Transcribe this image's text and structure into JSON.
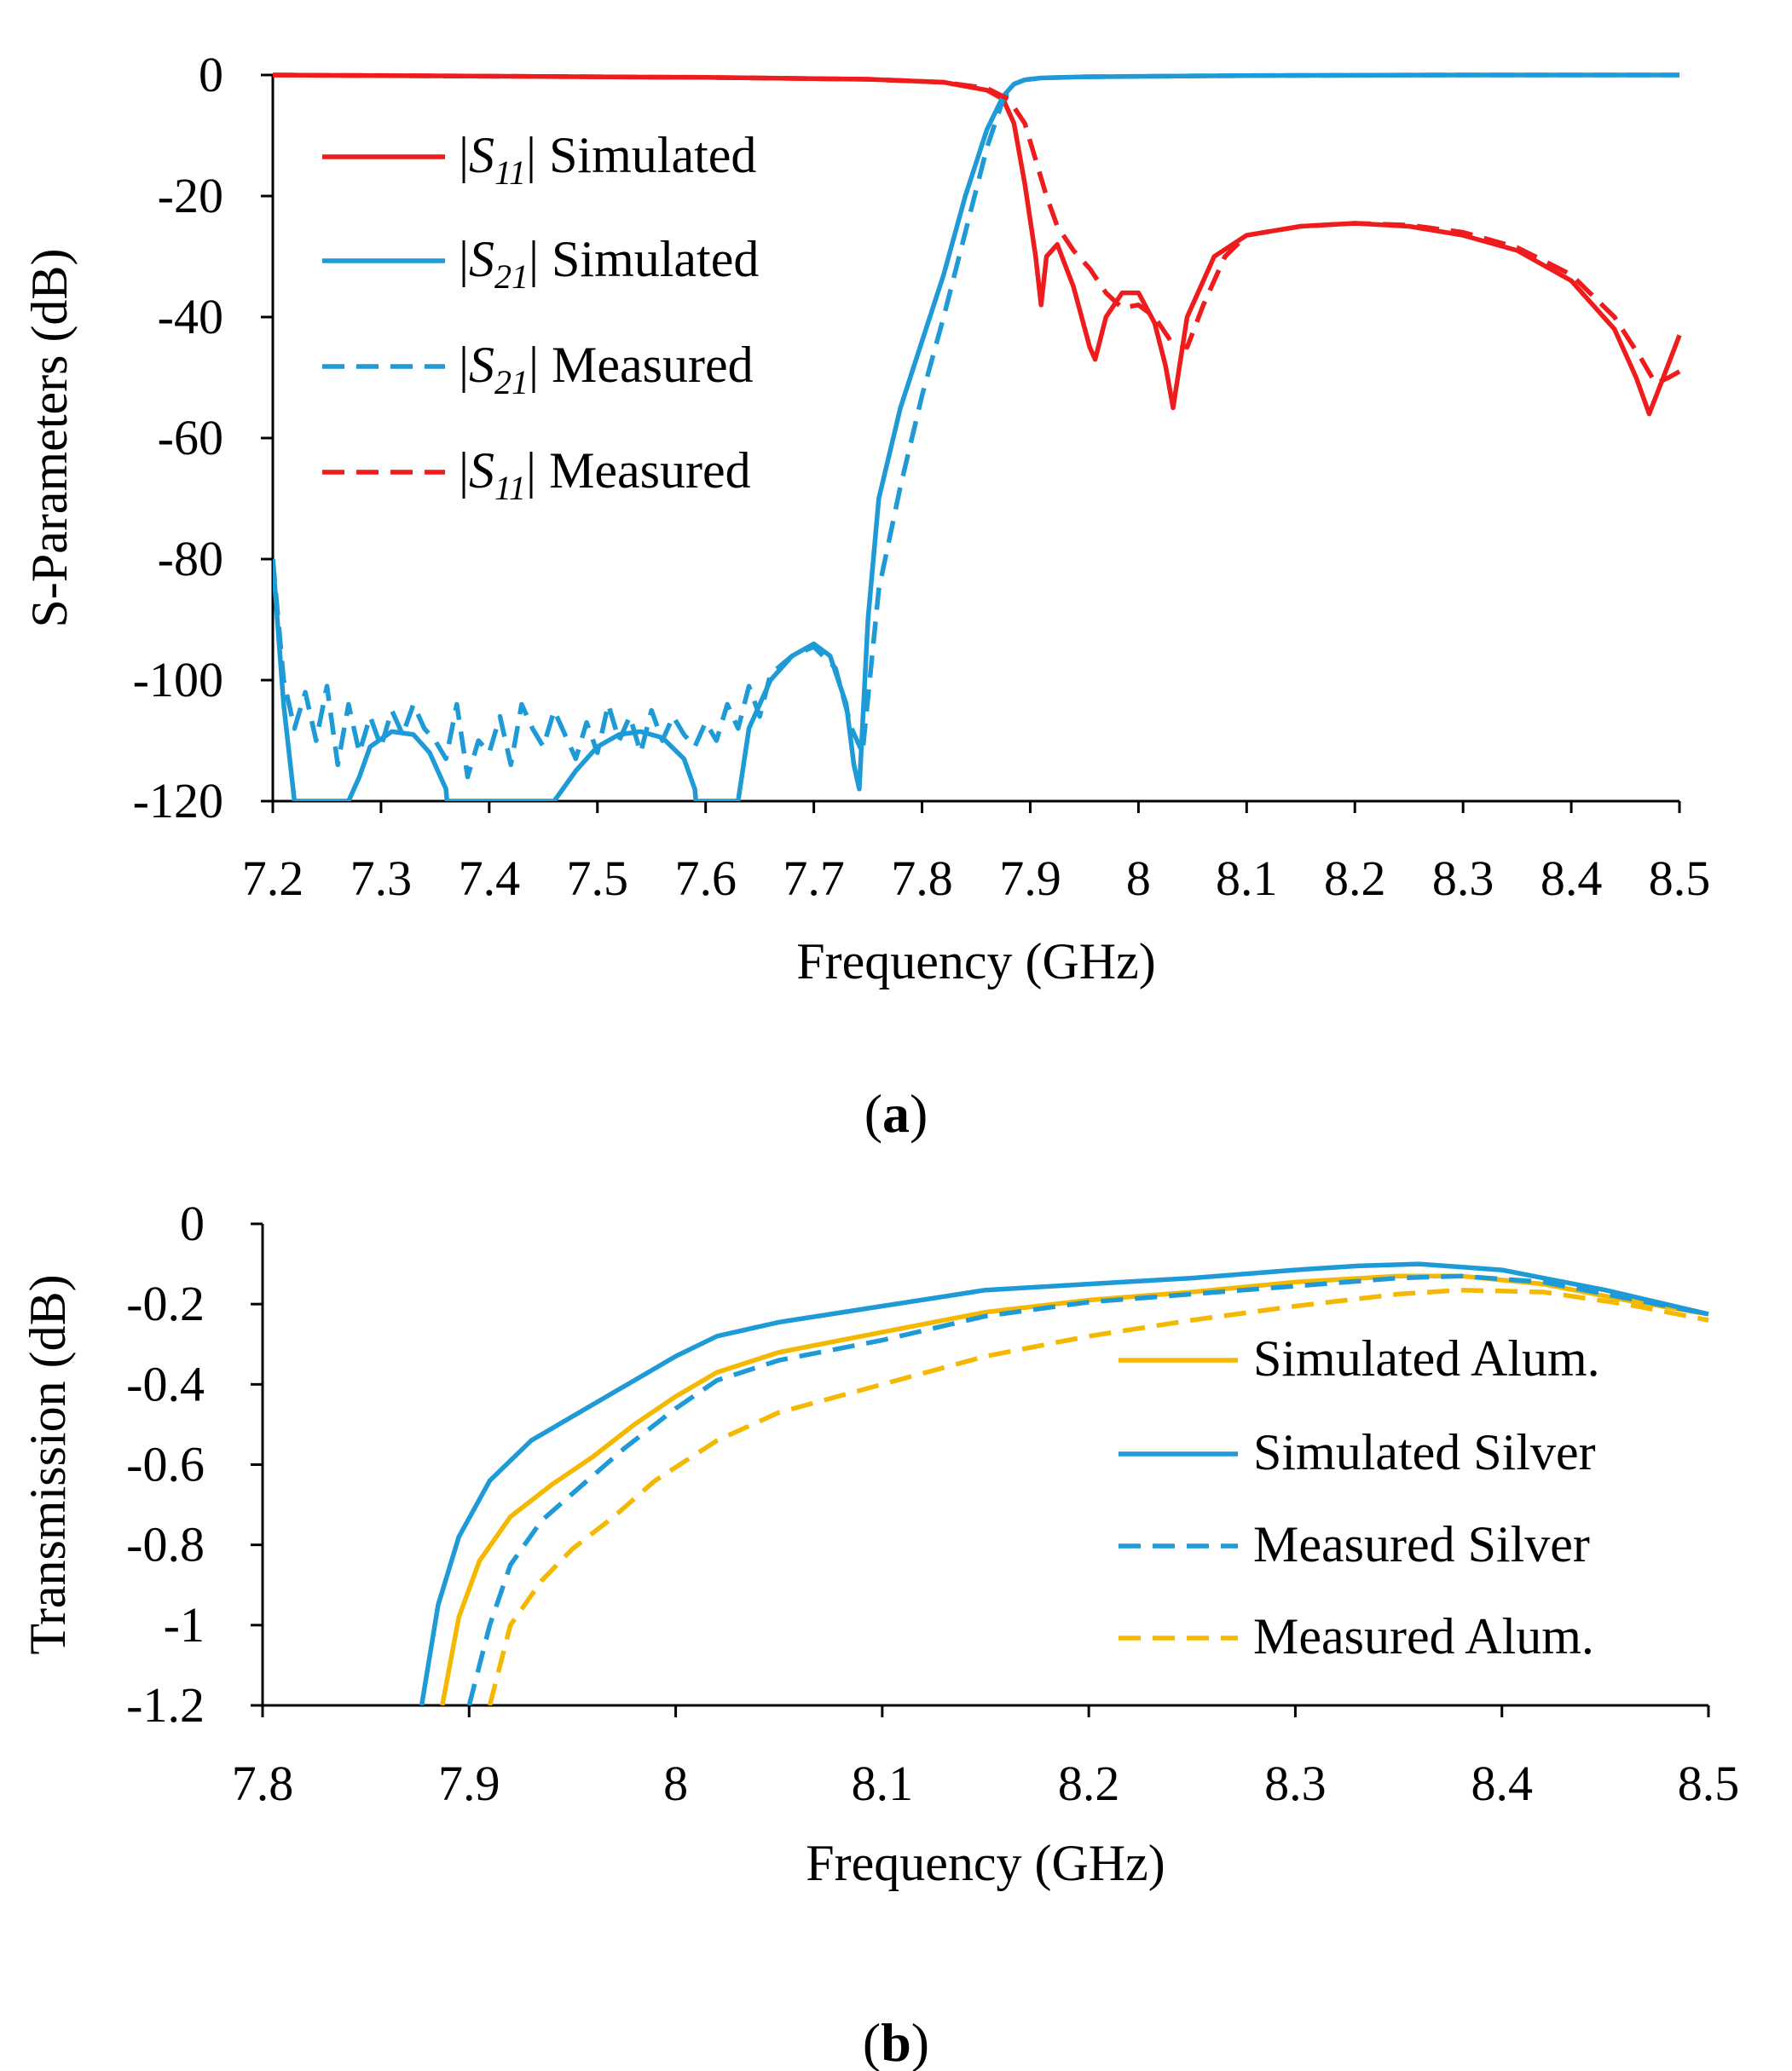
{
  "colors": {
    "red": "#ee1c1c",
    "blue": "#1e9ad6",
    "gold": "#f5b800"
  },
  "chart_data": [
    {
      "type": "line",
      "panel_label": "(a)",
      "xlabel": "Frequency (GHz)",
      "ylabel": "S-Parameters (dB)",
      "xlim": [
        7.2,
        8.5
      ],
      "ylim": [
        -120,
        0
      ],
      "xticks": [
        7.2,
        7.3,
        7.4,
        7.5,
        7.6,
        7.7,
        7.8,
        7.9,
        8,
        8.1,
        8.2,
        8.3,
        8.4,
        8.5
      ],
      "xtick_labels": [
        "7.2",
        "7.3",
        "7.4",
        "7.5",
        "7.6",
        "7.7",
        "7.8",
        "7.9",
        "8",
        "8.1",
        "8.2",
        "8.3",
        "8.4",
        "8.5"
      ],
      "yticks": [
        0,
        -20,
        -40,
        -60,
        -80,
        -100,
        -120
      ],
      "ytick_labels": [
        "0",
        "-20",
        "-40",
        "-60",
        "-80",
        "-100",
        "-120"
      ],
      "grid": false,
      "legend_position": "top-left",
      "series": [
        {
          "name": "|S11| Simulated",
          "legend_base": "S",
          "legend_sub": "11",
          "legend_suffix": "Simulated",
          "color": "red",
          "dash": false,
          "x": [
            7.2,
            7.4,
            7.6,
            7.75,
            7.82,
            7.86,
            7.875,
            7.885,
            7.895,
            7.905,
            7.91,
            7.915,
            7.925,
            7.94,
            7.955,
            7.96,
            7.97,
            7.985,
            8.0,
            8.015,
            8.025,
            8.032,
            8.045,
            8.07,
            8.1,
            8.15,
            8.2,
            8.25,
            8.3,
            8.35,
            8.4,
            8.44,
            8.46,
            8.472,
            8.485,
            8.5
          ],
          "y": [
            0,
            -0.2,
            -0.4,
            -0.7,
            -1.2,
            -2.5,
            -4,
            -8,
            -18,
            -30,
            -38,
            -30,
            -28,
            -35,
            -45,
            -47,
            -40,
            -36,
            -36,
            -41,
            -48,
            -55,
            -40,
            -30,
            -26.5,
            -25,
            -24.5,
            -25,
            -26.5,
            -29,
            -34,
            -42,
            -50,
            -56,
            -50,
            -43
          ]
        },
        {
          "name": "|S21| Simulated",
          "legend_base": "S",
          "legend_sub": "21",
          "legend_suffix": "Simulated",
          "color": "blue",
          "dash": false,
          "x": [
            7.2,
            7.21,
            7.22,
            7.221,
            7.27,
            7.28,
            7.29,
            7.31,
            7.33,
            7.345,
            7.36,
            7.361,
            7.46,
            7.48,
            7.5,
            7.52,
            7.54,
            7.56,
            7.58,
            7.59,
            7.591,
            7.63,
            7.64,
            7.66,
            7.68,
            7.7,
            7.715,
            7.73,
            7.737,
            7.742,
            7.75,
            7.76,
            7.78,
            7.8,
            7.82,
            7.84,
            7.86,
            7.875,
            7.885,
            7.895,
            7.91,
            7.95,
            8.1,
            8.3,
            8.5
          ],
          "y": [
            -80,
            -104,
            -120,
            -120,
            -120,
            -116,
            -111,
            -108.5,
            -109,
            -112,
            -118,
            -120,
            -120,
            -115,
            -111,
            -109,
            -108.5,
            -109.5,
            -113,
            -118,
            -120,
            -120,
            -108,
            -100,
            -96,
            -94,
            -96,
            -104,
            -114,
            -118,
            -90,
            -70,
            -55,
            -44,
            -33,
            -20,
            -9,
            -3.5,
            -1.5,
            -0.8,
            -0.5,
            -0.3,
            -0.1,
            0,
            0
          ]
        },
        {
          "name": "|S21| Measured",
          "legend_base": "S",
          "legend_sub": "21",
          "legend_suffix": "Measured",
          "color": "blue",
          "dash": true,
          "x": [
            7.2,
            7.21,
            7.22,
            7.23,
            7.24,
            7.25,
            7.26,
            7.27,
            7.28,
            7.29,
            7.3,
            7.31,
            7.32,
            7.33,
            7.34,
            7.35,
            7.36,
            7.37,
            7.38,
            7.39,
            7.4,
            7.41,
            7.42,
            7.43,
            7.44,
            7.45,
            7.46,
            7.47,
            7.48,
            7.49,
            7.5,
            7.51,
            7.52,
            7.53,
            7.54,
            7.55,
            7.56,
            7.57,
            7.58,
            7.59,
            7.6,
            7.61,
            7.62,
            7.63,
            7.64,
            7.65,
            7.66,
            7.68,
            7.7,
            7.72,
            7.735,
            7.745,
            7.76,
            7.78,
            7.8,
            7.82,
            7.84,
            7.86,
            7.875,
            7.885,
            7.895,
            7.91,
            7.95,
            8.1,
            8.3,
            8.5
          ],
          "y": [
            -80,
            -100,
            -108,
            -102,
            -110,
            -101,
            -114,
            -104,
            -112,
            -106,
            -111,
            -105,
            -109,
            -104,
            -108,
            -110,
            -113,
            -104,
            -116,
            -110,
            -112,
            -106,
            -114,
            -104,
            -108,
            -111,
            -105,
            -109,
            -113,
            -107,
            -112,
            -104,
            -110,
            -106,
            -112,
            -105,
            -110,
            -106,
            -109,
            -111,
            -107,
            -110,
            -104,
            -108,
            -101,
            -106,
            -99,
            -96,
            -94.5,
            -98,
            -108,
            -112,
            -85,
            -68,
            -53,
            -40,
            -26,
            -12,
            -4,
            -1.5,
            -0.8,
            -0.5,
            -0.3,
            -0.1,
            0,
            0
          ]
        },
        {
          "name": "|S11| Measured",
          "legend_base": "S",
          "legend_sub": "11",
          "legend_suffix": "Measured",
          "color": "red",
          "dash": true,
          "x": [
            7.2,
            7.4,
            7.6,
            7.75,
            7.82,
            7.86,
            7.88,
            7.895,
            7.905,
            7.915,
            7.925,
            7.94,
            7.955,
            7.97,
            7.985,
            8.0,
            8.015,
            8.03,
            8.045,
            8.06,
            8.08,
            8.1,
            8.15,
            8.2,
            8.25,
            8.3,
            8.35,
            8.4,
            8.44,
            8.465,
            8.478,
            8.49,
            8.5
          ],
          "y": [
            0,
            -0.2,
            -0.4,
            -0.7,
            -1.2,
            -2.2,
            -4,
            -8,
            -14,
            -20,
            -25,
            -29,
            -32,
            -36,
            -38.5,
            -38,
            -40,
            -44,
            -45,
            -38,
            -30,
            -26.5,
            -25,
            -24.5,
            -24.8,
            -26,
            -28.5,
            -33,
            -40,
            -47,
            -51,
            -50,
            -49
          ]
        }
      ]
    },
    {
      "type": "line",
      "panel_label": "(b)",
      "xlabel": "Frequency (GHz)",
      "ylabel": "Transmission (dB)",
      "xlim": [
        7.8,
        8.5
      ],
      "ylim": [
        -1.2,
        0
      ],
      "xticks": [
        7.8,
        7.9,
        8,
        8.1,
        8.2,
        8.3,
        8.4,
        8.5
      ],
      "xtick_labels": [
        "7.8",
        "7.9",
        "8",
        "8.1",
        "8.2",
        "8.3",
        "8.4",
        "8.5"
      ],
      "yticks": [
        0,
        -0.2,
        -0.4,
        -0.6,
        -0.8,
        -1,
        -1.2
      ],
      "ytick_labels": [
        "0",
        "-0.2",
        "-0.4",
        "-0.6",
        "-0.8",
        "-1",
        "-1.2"
      ],
      "grid": false,
      "legend_position": "right",
      "series": [
        {
          "name": "Simulated Alum.",
          "color": "gold",
          "dash": false,
          "x": [
            7.887,
            7.895,
            7.905,
            7.92,
            7.94,
            7.96,
            7.98,
            8.0,
            8.02,
            8.05,
            8.1,
            8.15,
            8.2,
            8.25,
            8.3,
            8.35,
            8.38,
            8.42,
            8.46,
            8.5
          ],
          "y": [
            -1.2,
            -0.98,
            -0.84,
            -0.73,
            -0.65,
            -0.58,
            -0.5,
            -0.43,
            -0.37,
            -0.32,
            -0.27,
            -0.22,
            -0.19,
            -0.17,
            -0.145,
            -0.13,
            -0.13,
            -0.15,
            -0.19,
            -0.225
          ]
        },
        {
          "name": "Simulated Silver",
          "color": "blue",
          "dash": false,
          "x": [
            7.877,
            7.885,
            7.895,
            7.91,
            7.93,
            7.95,
            7.97,
            8.0,
            8.02,
            8.05,
            8.1,
            8.15,
            8.2,
            8.25,
            8.3,
            8.33,
            8.36,
            8.4,
            8.45,
            8.5
          ],
          "y": [
            -1.2,
            -0.95,
            -0.78,
            -0.64,
            -0.54,
            -0.48,
            -0.42,
            -0.33,
            -0.28,
            -0.245,
            -0.205,
            -0.165,
            -0.15,
            -0.135,
            -0.115,
            -0.105,
            -0.1,
            -0.115,
            -0.165,
            -0.225
          ]
        },
        {
          "name": "Measured Silver",
          "color": "blue",
          "dash": true,
          "x": [
            7.9,
            7.91,
            7.92,
            7.935,
            7.955,
            7.975,
            8.0,
            8.02,
            8.05,
            8.1,
            8.15,
            8.2,
            8.25,
            8.3,
            8.35,
            8.38,
            8.42,
            8.46,
            8.5
          ],
          "y": [
            -1.2,
            -1.0,
            -0.85,
            -0.74,
            -0.65,
            -0.56,
            -0.46,
            -0.39,
            -0.34,
            -0.29,
            -0.23,
            -0.195,
            -0.175,
            -0.155,
            -0.135,
            -0.13,
            -0.145,
            -0.185,
            -0.225
          ]
        },
        {
          "name": "Measured Alum.",
          "color": "gold",
          "dash": true,
          "x": [
            7.91,
            7.92,
            7.935,
            7.95,
            7.97,
            7.99,
            8.02,
            8.05,
            8.1,
            8.15,
            8.2,
            8.25,
            8.3,
            8.35,
            8.38,
            8.42,
            8.46,
            8.5
          ],
          "y": [
            -1.2,
            -1.0,
            -0.89,
            -0.81,
            -0.73,
            -0.64,
            -0.54,
            -0.47,
            -0.4,
            -0.33,
            -0.28,
            -0.24,
            -0.205,
            -0.175,
            -0.165,
            -0.17,
            -0.2,
            -0.24
          ]
        }
      ]
    }
  ]
}
